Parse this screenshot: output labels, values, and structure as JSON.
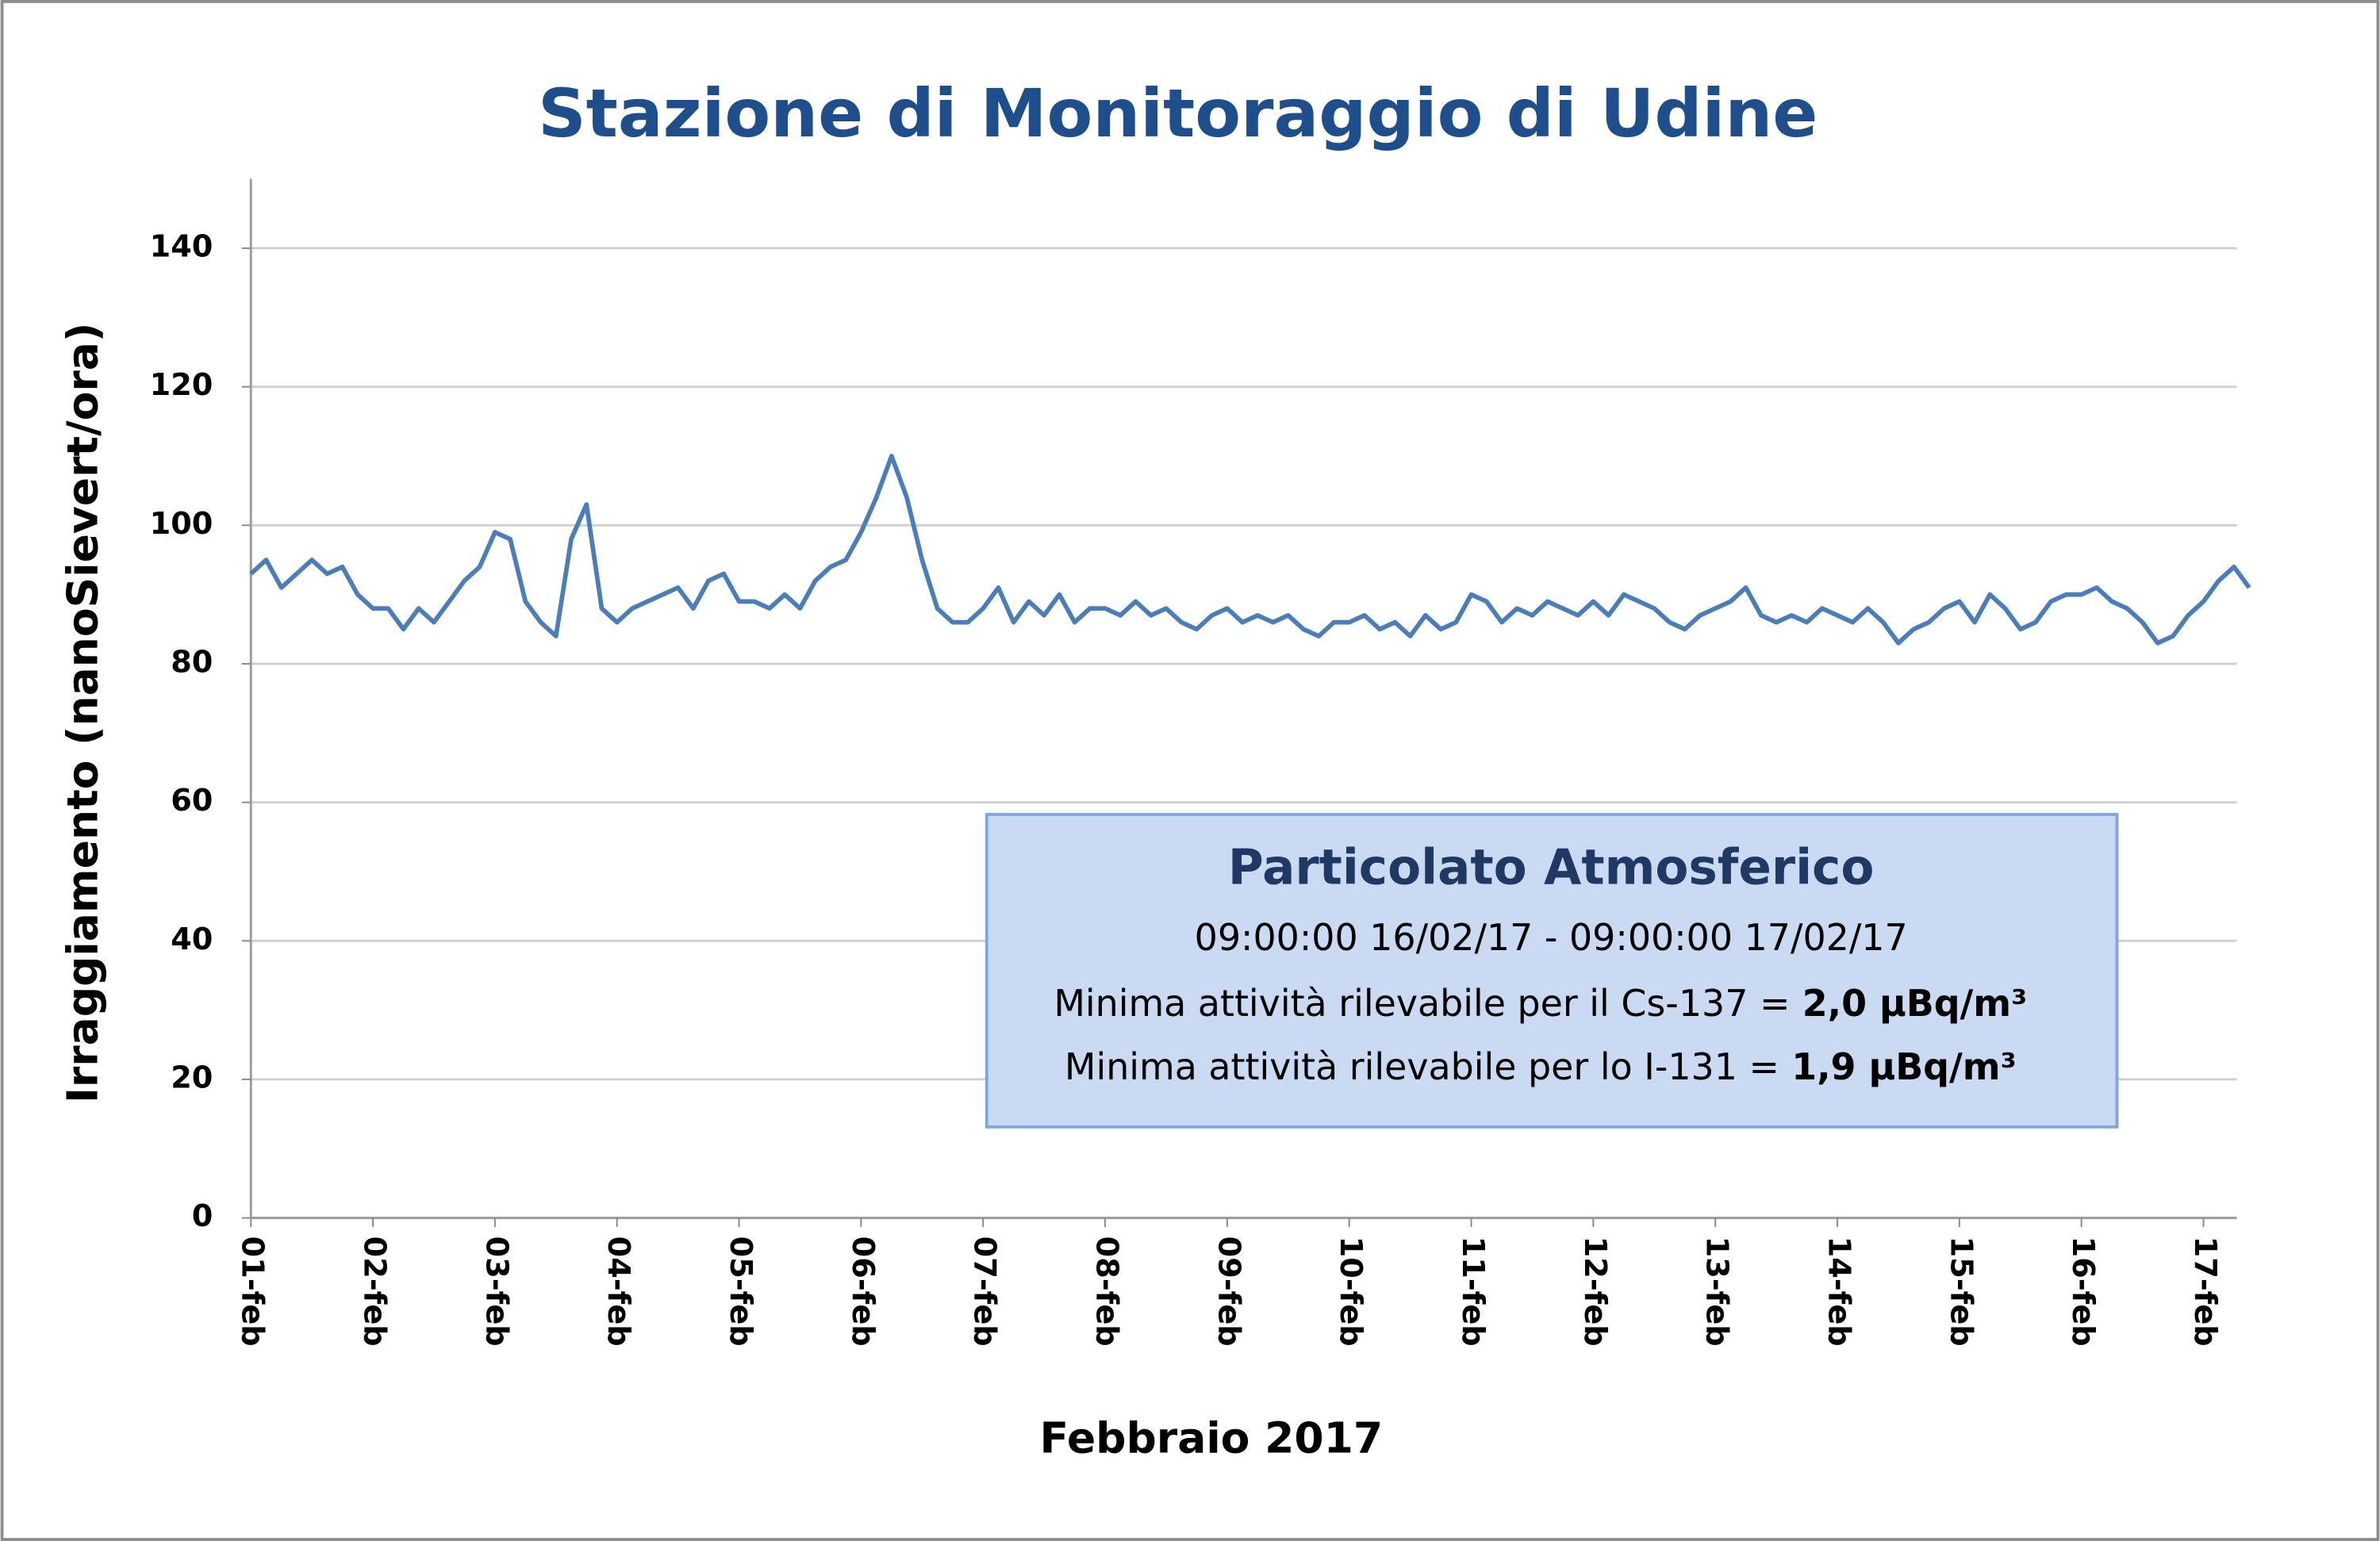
{
  "chart_data": {
    "type": "line",
    "title": "Stazione di Monitoraggio di Udine",
    "y_label": "Irraggiamento (nanoSievert/ora)",
    "x_label": "Febbraio 2017",
    "categories": [
      "01-feb",
      null,
      null,
      null,
      null,
      null,
      null,
      null,
      "02-feb",
      null,
      null,
      null,
      null,
      null,
      null,
      null,
      "03-feb",
      null,
      null,
      null,
      null,
      null,
      null,
      null,
      "04-feb",
      null,
      null,
      null,
      null,
      null,
      null,
      null,
      "05-feb",
      null,
      null,
      null,
      null,
      null,
      null,
      null,
      "06-feb",
      null,
      null,
      null,
      null,
      null,
      null,
      null,
      "07-feb",
      null,
      null,
      null,
      null,
      null,
      null,
      null,
      "08-feb",
      null,
      null,
      null,
      null,
      null,
      null,
      null,
      "09-feb",
      null,
      null,
      null,
      null,
      null,
      null,
      null,
      "10-feb",
      null,
      null,
      null,
      null,
      null,
      null,
      null,
      "11-feb",
      null,
      null,
      null,
      null,
      null,
      null,
      null,
      "12-feb",
      null,
      null,
      null,
      null,
      null,
      null,
      null,
      "13-feb",
      null,
      null,
      null,
      null,
      null,
      null,
      null,
      "14-feb",
      null,
      null,
      null,
      null,
      null,
      null,
      null,
      "15-feb",
      null,
      null,
      null,
      null,
      null,
      null,
      null,
      "16-feb",
      null,
      null,
      null,
      null,
      null,
      null,
      null,
      "17-feb",
      null,
      null,
      null
    ],
    "series": [
      {
        "color": "#4a7ebb",
        "values": [
          93,
          95,
          91,
          93,
          95,
          93,
          94,
          90,
          88,
          88,
          85,
          88,
          86,
          89,
          92,
          94,
          99,
          98,
          89,
          86,
          84,
          98,
          103,
          88,
          86,
          88,
          89,
          90,
          91,
          88,
          92,
          93,
          89,
          89,
          88,
          90,
          88,
          92,
          94,
          95,
          99,
          104,
          110,
          104,
          95,
          88,
          86,
          86,
          88,
          91,
          86,
          89,
          87,
          90,
          86,
          88,
          88,
          87,
          89,
          87,
          88,
          86,
          85,
          87,
          88,
          86,
          87,
          86,
          87,
          85,
          84,
          86,
          86,
          87,
          85,
          86,
          84,
          87,
          85,
          86,
          90,
          89,
          86,
          88,
          87,
          89,
          88,
          87,
          89,
          87,
          90,
          89,
          88,
          86,
          85,
          87,
          88,
          89,
          91,
          87,
          86,
          87,
          86,
          88,
          87,
          86,
          88,
          86,
          83,
          85,
          86,
          88,
          89,
          86,
          90,
          88,
          85,
          86,
          89,
          90,
          90,
          91,
          89,
          88,
          86,
          83,
          84,
          87,
          89,
          92,
          94,
          91
        ]
      }
    ],
    "ylim": [
      0,
      150
    ],
    "yticks": [
      0,
      20,
      40,
      60,
      80,
      100,
      120,
      140
    ],
    "grid": true,
    "annotation": {
      "title": "Particolato Atmosferico",
      "period": "09:00:00 16/02/17 - 09:00:00 17/02/17",
      "lines": [
        [
          "Minima attività rilevabile per il Cs-137 =",
          "2,0 µBq/m³"
        ],
        [
          "Minima attività rilevabile per lo I-131 =",
          "1,9 µBq/m³"
        ]
      ]
    }
  }
}
